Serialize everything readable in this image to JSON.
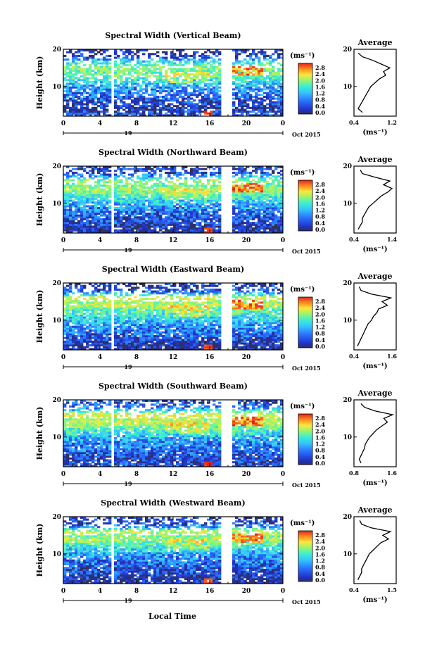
{
  "chart_data": [
    {
      "type": "heatmap",
      "title": "Spectral Width (Vertical Beam)",
      "ylabel": "Height (km)",
      "xticks": [
        "0",
        "4",
        "8",
        "12",
        "16",
        "20",
        "0"
      ],
      "yticks": [
        "10",
        "20"
      ],
      "xlim": [
        0,
        24
      ],
      "ylim": [
        2,
        20
      ],
      "day_label": "19",
      "month_label": "Oct 2015",
      "colorbar": {
        "unit": "(ms⁻¹)",
        "ticks": [
          "2.8",
          "2.4",
          "2.0",
          "1.6",
          "1.2",
          "0.8",
          "0.4",
          "0.0"
        ]
      },
      "average": {
        "title": "Average",
        "xlabel": "(ms⁻¹)",
        "xticks": [
          "0.4",
          "1.2"
        ],
        "xlim": [
          0.4,
          1.4
        ],
        "yticks": [
          "10",
          "20"
        ],
        "heights": [
          3,
          4,
          5,
          6,
          7,
          8,
          9,
          10,
          11,
          12,
          13,
          14,
          15,
          16,
          17,
          18,
          19
        ],
        "values": [
          0.6,
          0.5,
          0.55,
          0.6,
          0.65,
          0.7,
          0.75,
          0.8,
          0.9,
          1.0,
          1.15,
          1.1,
          1.25,
          1.05,
          0.85,
          0.6,
          0.5
        ]
      }
    },
    {
      "type": "heatmap",
      "title": "Spectral Width (Northward Beam)",
      "ylabel": "Height (km)",
      "xticks": [
        "0",
        "4",
        "8",
        "12",
        "16",
        "20",
        "0"
      ],
      "yticks": [
        "10",
        "20"
      ],
      "xlim": [
        0,
        24
      ],
      "ylim": [
        2,
        20
      ],
      "day_label": "19",
      "month_label": "Oct 2015",
      "colorbar": {
        "unit": "(ms⁻¹)",
        "ticks": [
          "2.8",
          "2.4",
          "2.0",
          "1.6",
          "1.2",
          "0.8",
          "0.4",
          "0.0"
        ]
      },
      "average": {
        "title": "Average",
        "xlabel": "(ms⁻¹)",
        "xticks": [
          "0.4",
          "1.4"
        ],
        "xlim": [
          0.4,
          1.4
        ],
        "yticks": [
          "10",
          "20"
        ],
        "heights": [
          3,
          4,
          5,
          6,
          7,
          8,
          9,
          10,
          11,
          12,
          13,
          14,
          15,
          16,
          17,
          18,
          19
        ],
        "values": [
          0.5,
          0.55,
          0.6,
          0.6,
          0.65,
          0.7,
          0.75,
          0.85,
          0.95,
          1.05,
          1.2,
          1.3,
          1.1,
          1.25,
          0.9,
          0.6,
          0.55
        ]
      }
    },
    {
      "type": "heatmap",
      "title": "Spectral Width (Eastward Beam)",
      "ylabel": "Height (km)",
      "xticks": [
        "0",
        "4",
        "8",
        "12",
        "16",
        "20",
        "0"
      ],
      "yticks": [
        "10",
        "20"
      ],
      "xlim": [
        0,
        24
      ],
      "ylim": [
        2,
        20
      ],
      "day_label": "19",
      "month_label": "Oct 2015",
      "colorbar": {
        "unit": "(ms⁻¹)",
        "ticks": [
          "2.8",
          "2.4",
          "2.0",
          "1.6",
          "1.2",
          "0.8",
          "0.4",
          "0.0"
        ]
      },
      "average": {
        "title": "Average",
        "xlabel": "(ms⁻¹)",
        "xticks": [
          "0.4",
          "1.6"
        ],
        "xlim": [
          0.4,
          1.6
        ],
        "yticks": [
          "10",
          "20"
        ],
        "heights": [
          3,
          4,
          5,
          6,
          7,
          8,
          9,
          10,
          11,
          12,
          13,
          14,
          15,
          16,
          17,
          18,
          19
        ],
        "values": [
          0.5,
          0.55,
          0.6,
          0.65,
          0.7,
          0.75,
          0.8,
          0.9,
          0.95,
          1.05,
          1.1,
          1.35,
          1.2,
          1.45,
          0.9,
          0.6,
          0.55
        ]
      }
    },
    {
      "type": "heatmap",
      "title": "Spectral Width (Southward Beam)",
      "ylabel": "Height (km)",
      "xticks": [
        "0",
        "4",
        "8",
        "12",
        "16",
        "20",
        "0"
      ],
      "yticks": [
        "10",
        "20"
      ],
      "xlim": [
        0,
        24
      ],
      "ylim": [
        2,
        20
      ],
      "day_label": "19",
      "month_label": "Oct 2015",
      "colorbar": {
        "unit": "(ms⁻¹)",
        "ticks": [
          "2.8",
          "2.4",
          "2.0",
          "1.6",
          "1.2",
          "0.8",
          "0.4",
          "0.0"
        ]
      },
      "average": {
        "title": "Average",
        "xlabel": "(ms⁻¹)",
        "xticks": [
          "0.8",
          "1.6"
        ],
        "xlim": [
          0.4,
          1.6
        ],
        "yticks": [
          "10",
          "20"
        ],
        "heights": [
          3,
          4,
          5,
          6,
          7,
          8,
          9,
          10,
          11,
          12,
          13,
          14,
          15,
          16,
          17,
          18,
          19
        ],
        "values": [
          0.6,
          0.55,
          0.6,
          0.65,
          0.7,
          0.72,
          0.78,
          0.85,
          0.95,
          1.05,
          1.2,
          1.35,
          1.25,
          1.5,
          1.0,
          0.7,
          0.6
        ]
      }
    },
    {
      "type": "heatmap",
      "title": "Spectral Width (Westward Beam)",
      "ylabel": "Height (km)",
      "xticks": [
        "0",
        "4",
        "8",
        "12",
        "16",
        "20",
        "0"
      ],
      "yticks": [
        "10",
        "20"
      ],
      "xlim": [
        0,
        24
      ],
      "ylim": [
        2,
        20
      ],
      "day_label": "19",
      "month_label": "Oct 2015",
      "colorbar": {
        "unit": "(ms⁻¹)",
        "ticks": [
          "2.8",
          "2.4",
          "2.0",
          "1.6",
          "1.2",
          "0.8",
          "0.4",
          "0.0"
        ]
      },
      "average": {
        "title": "Average",
        "xlabel": "(ms⁻¹)",
        "xticks": [
          "0.4",
          "1.5"
        ],
        "xlim": [
          0.4,
          1.5
        ],
        "yticks": [
          "10",
          "20"
        ],
        "heights": [
          3,
          4,
          5,
          6,
          7,
          8,
          9,
          10,
          11,
          12,
          13,
          14,
          15,
          16,
          17,
          18,
          19
        ],
        "values": [
          0.5,
          0.55,
          0.6,
          0.6,
          0.65,
          0.7,
          0.75,
          0.8,
          0.9,
          1.0,
          1.1,
          1.3,
          1.15,
          1.35,
          0.85,
          0.6,
          0.55
        ]
      }
    }
  ],
  "xlabel": "Local Time"
}
